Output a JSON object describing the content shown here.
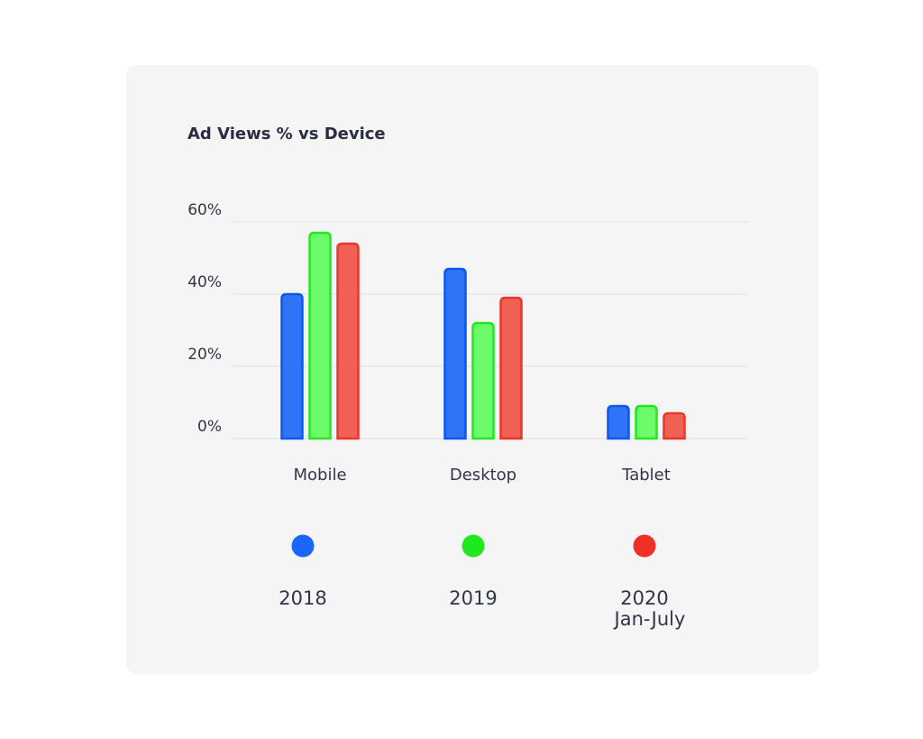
{
  "chart_data": {
    "type": "bar",
    "title": "Ad Views % vs Device",
    "xlabel": "",
    "ylabel": "",
    "categories": [
      "Mobile",
      "Desktop",
      "Tablet"
    ],
    "ylim": [
      0,
      60
    ],
    "yticks": [
      "0%",
      "20%",
      "40%",
      "60%"
    ],
    "ytick_values": [
      0,
      20,
      40,
      60
    ],
    "grid": true,
    "legend_position": "bottom",
    "series": [
      {
        "name": "2018",
        "legend_lines": [
          "2018"
        ],
        "values": [
          40,
          47,
          9
        ],
        "color": "#1a66ff",
        "fill": "#2f73f7",
        "stroke": "#0b57f0"
      },
      {
        "name": "2019",
        "legend_lines": [
          "2019"
        ],
        "values": [
          57,
          32,
          9
        ],
        "color": "#1fe81f",
        "fill": "#6bfb6b",
        "stroke": "#22e822"
      },
      {
        "name": "2020 Jan-July",
        "legend_lines": [
          "2020",
          "Jan-July"
        ],
        "values": [
          54,
          39,
          7
        ],
        "color": "#ee3124",
        "fill": "#f06055",
        "stroke": "#e8372c"
      }
    ]
  }
}
